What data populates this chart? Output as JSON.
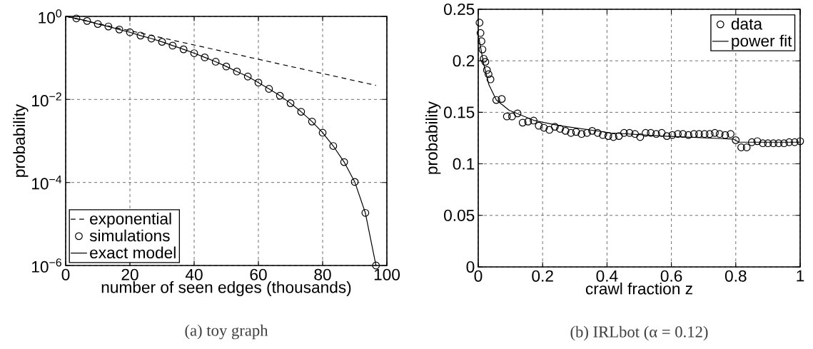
{
  "chart_data": [
    {
      "type": "line",
      "xlabel": "number of seen edges (thousands)",
      "ylabel": "probability",
      "log": true,
      "grid": true,
      "legend": "bottom left",
      "xlim": [
        0,
        100
      ],
      "xticks": [
        0,
        20,
        40,
        60,
        80,
        100
      ],
      "ylim": [
        1e-06,
        1
      ],
      "yticks": [
        {
          "value": 1e-06,
          "label": "10$^{−6}$"
        },
        {
          "value": 0.0001,
          "label": "10$^{−4}$"
        },
        {
          "value": 0.01,
          "label": "10$^{−2}$"
        },
        {
          "value": 1,
          "label": "10$^{0}$"
        }
      ],
      "annotations": [
        "(a) toy graph"
      ],
      "series": [
        {
          "name": "exponential",
          "type": "line",
          "line_style": "dashed",
          "color": "#000000",
          "x": [
            0,
            96.6
          ],
          "values": [
            1,
            0.0218
          ]
        },
        {
          "name": "simulations",
          "type": "scatter",
          "marker": "circle",
          "color": "#000000",
          "x": [
            3.33,
            6.67,
            10,
            13.3,
            16.7,
            20,
            23.3,
            26.7,
            30,
            33.3,
            36.7,
            40,
            43.3,
            46.7,
            50,
            53.3,
            56.7,
            60,
            63.3,
            66.7,
            70,
            73.3,
            76.7,
            80,
            83.3,
            86.7,
            90,
            93.3,
            96.6
          ],
          "values": [
            0.895,
            0.778,
            0.658,
            0.573,
            0.484,
            0.415,
            0.346,
            0.293,
            0.244,
            0.198,
            0.161,
            0.13,
            0.103,
            0.0811,
            0.0622,
            0.0471,
            0.0356,
            0.0255,
            0.018,
            0.0123,
            0.00811,
            0.00505,
            0.00293,
            0.00158,
            0.000757,
            0.00031,
            0.000103,
            1.85e-05,
            1e-06
          ]
        },
        {
          "name": "exact model",
          "type": "line",
          "line_style": "solid",
          "color": "#000000",
          "x": [
            0,
            3.33,
            6.67,
            10,
            13.3,
            16.7,
            20,
            23.3,
            26.7,
            30,
            33.3,
            36.7,
            40,
            43.3,
            46.7,
            50,
            53.3,
            56.7,
            60,
            63.3,
            66.7,
            70,
            73.3,
            76.7,
            80,
            83.3,
            86.7,
            90,
            93.3,
            96.6
          ],
          "values": [
            1,
            0.895,
            0.778,
            0.658,
            0.573,
            0.484,
            0.415,
            0.346,
            0.293,
            0.244,
            0.198,
            0.161,
            0.13,
            0.103,
            0.0811,
            0.0622,
            0.0471,
            0.0356,
            0.0255,
            0.018,
            0.0123,
            0.00811,
            0.00505,
            0.00293,
            0.00158,
            0.000757,
            0.00031,
            0.000103,
            1.85e-05,
            1e-06
          ]
        }
      ]
    },
    {
      "type": "line",
      "xlabel": "crawl fraction z",
      "ylabel": "probability",
      "grid": true,
      "legend": "top right",
      "xlim": [
        0,
        1
      ],
      "xticks": [
        0,
        0.2,
        0.4,
        0.6,
        0.8,
        1
      ],
      "ylim": [
        0,
        0.25
      ],
      "yticks": [
        0,
        0.05,
        0.1,
        0.15,
        0.2,
        0.25
      ],
      "annotations": [
        "(b) IRLbot (α = 0.12)"
      ],
      "series": [
        {
          "name": "data",
          "type": "scatter",
          "marker": "circle",
          "color": "#000000",
          "x": [
            0.004,
            0.007,
            0.01,
            0.013,
            0.017,
            0.022,
            0.027,
            0.032,
            0.038,
            0.056,
            0.073,
            0.089,
            0.105,
            0.122,
            0.138,
            0.155,
            0.172,
            0.188,
            0.204,
            0.221,
            0.238,
            0.254,
            0.271,
            0.288,
            0.304,
            0.321,
            0.338,
            0.354,
            0.371,
            0.387,
            0.404,
            0.42,
            0.437,
            0.453,
            0.47,
            0.487,
            0.503,
            0.52,
            0.536,
            0.553,
            0.57,
            0.586,
            0.603,
            0.62,
            0.636,
            0.653,
            0.67,
            0.686,
            0.703,
            0.719,
            0.735,
            0.75,
            0.767,
            0.784,
            0.8,
            0.817,
            0.834,
            0.85,
            0.867,
            0.884,
            0.9,
            0.917,
            0.933,
            0.95,
            0.966,
            0.983,
            1.0
          ],
          "values": [
            0.237,
            0.227,
            0.219,
            0.211,
            0.202,
            0.199,
            0.191,
            0.187,
            0.182,
            0.162,
            0.163,
            0.146,
            0.146,
            0.149,
            0.14,
            0.141,
            0.142,
            0.137,
            0.135,
            0.133,
            0.136,
            0.134,
            0.132,
            0.13,
            0.131,
            0.129,
            0.13,
            0.132,
            0.13,
            0.128,
            0.127,
            0.126,
            0.127,
            0.13,
            0.13,
            0.129,
            0.126,
            0.13,
            0.13,
            0.129,
            0.13,
            0.127,
            0.128,
            0.129,
            0.129,
            0.128,
            0.129,
            0.129,
            0.129,
            0.129,
            0.13,
            0.129,
            0.128,
            0.129,
            0.123,
            0.116,
            0.116,
            0.121,
            0.122,
            0.12,
            0.12,
            0.12,
            0.12,
            0.12,
            0.121,
            0.121,
            0.122
          ]
        },
        {
          "name": "power fit",
          "type": "line",
          "line_style": "solid",
          "color": "#000000",
          "x": [
            0.002,
            0.017,
            0.033,
            0.056,
            0.096,
            0.175,
            0.254,
            0.413,
            0.572,
            0.793,
            0.81,
            1.0
          ],
          "values": [
            0.222,
            0.197,
            0.177,
            0.162,
            0.152,
            0.142,
            0.137,
            0.13,
            0.127,
            0.124,
            0.121,
            0.121
          ]
        }
      ]
    }
  ]
}
